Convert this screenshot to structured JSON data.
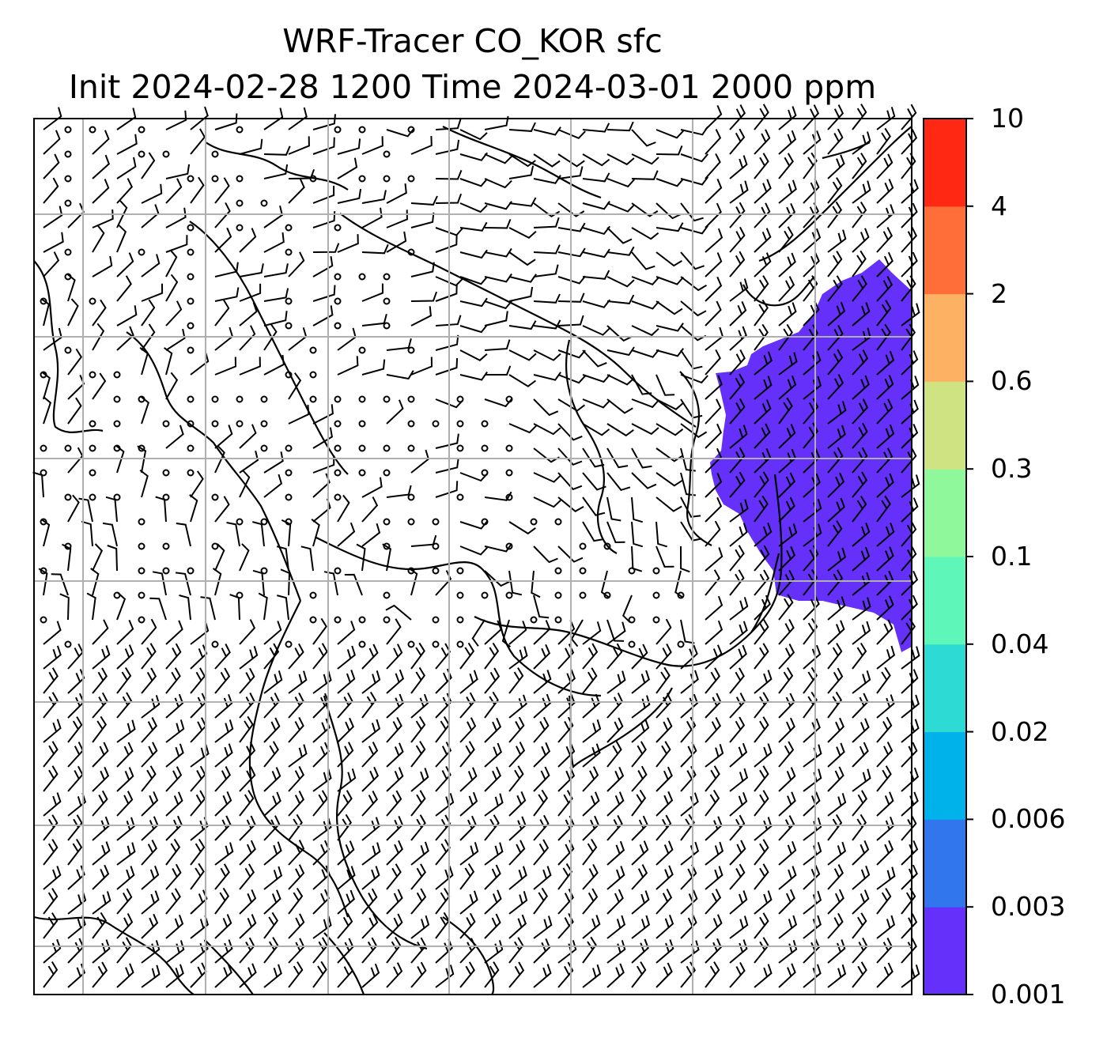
{
  "title_line1": "WRF-Tracer CO_KOR sfc",
  "title_line2": "Init 2024-02-28 1200 Time 2024-03-01 2000 ppm",
  "colorbar": {
    "levels": [
      "0.001",
      "0.003",
      "0.006",
      "0.02",
      "0.04",
      "0.1",
      "0.3",
      "0.6",
      "2",
      "4",
      "10"
    ],
    "colors": [
      "#6531fa",
      "#3276ee",
      "#00b2ea",
      "#2ddbd4",
      "#5ff6ba",
      "#8ff89b",
      "#d0e383",
      "#fdb163",
      "#ff6d39",
      "#ff2813"
    ]
  },
  "map": {
    "background": "#ffffff",
    "gridline_color": "#b0b0b0",
    "plume_color": "#6531fa",
    "plume_level": "0.001"
  }
}
